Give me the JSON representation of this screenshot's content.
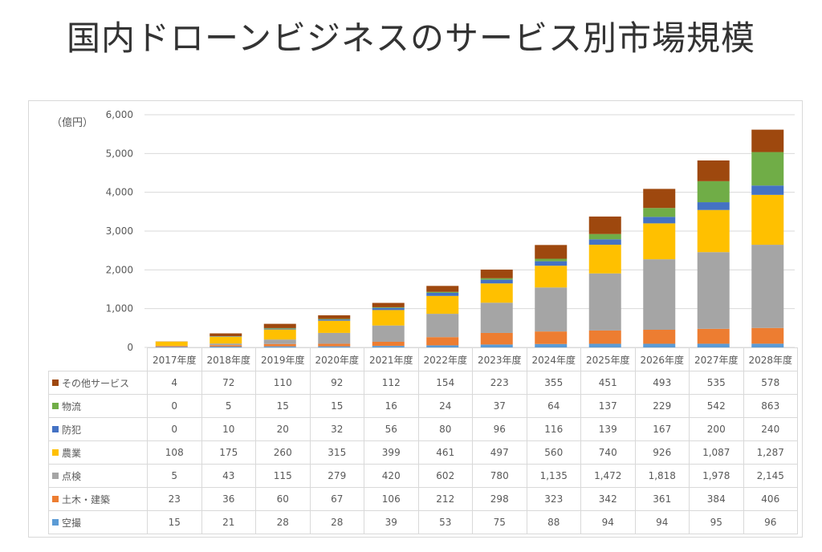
{
  "title": "国内ドローンビジネスのサービス別市場規模",
  "chart_data": {
    "type": "bar",
    "stacked": true,
    "title": "国内ドローンビジネスのサービス別市場規模",
    "ylabel": "（億円）",
    "ylim": [
      0,
      6000
    ],
    "yticks": [
      "0",
      "1,000",
      "2,000",
      "3,000",
      "4,000",
      "5,000",
      "6,000"
    ],
    "grid": true,
    "legend": "data-table",
    "categories": [
      "2017年度",
      "2018年度",
      "2019年度",
      "2020年度",
      "2021年度",
      "2022年度",
      "2023年度",
      "2024年度",
      "2025年度",
      "2026年度",
      "2027年度",
      "2028年度"
    ],
    "series": [
      {
        "name": "その他サービス",
        "color": "#9E480E",
        "values": [
          4,
          72,
          110,
          92,
          112,
          154,
          223,
          355,
          451,
          493,
          535,
          578
        ]
      },
      {
        "name": "物流",
        "color": "#70AD47",
        "values": [
          0,
          5,
          15,
          15,
          16,
          24,
          37,
          64,
          137,
          229,
          542,
          863
        ]
      },
      {
        "name": "防犯",
        "color": "#4472C4",
        "values": [
          0,
          10,
          20,
          32,
          56,
          80,
          96,
          116,
          139,
          167,
          200,
          240
        ]
      },
      {
        "name": "農業",
        "color": "#FFC000",
        "values": [
          108,
          175,
          260,
          315,
          399,
          461,
          497,
          560,
          740,
          926,
          1087,
          1287
        ]
      },
      {
        "name": "点検",
        "color": "#A5A5A5",
        "values": [
          5,
          43,
          115,
          279,
          420,
          602,
          780,
          1135,
          1472,
          1818,
          1978,
          2145
        ]
      },
      {
        "name": "土木・建築",
        "color": "#ED7D31",
        "values": [
          23,
          36,
          60,
          67,
          106,
          212,
          298,
          323,
          342,
          361,
          384,
          406
        ]
      },
      {
        "name": "空撮",
        "color": "#5B9BD5",
        "values": [
          15,
          21,
          28,
          28,
          39,
          53,
          75,
          88,
          94,
          94,
          95,
          96
        ]
      }
    ]
  }
}
